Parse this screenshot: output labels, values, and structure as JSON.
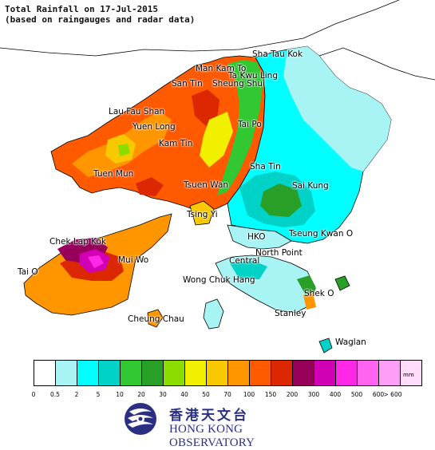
{
  "title": {
    "line1": "Total Rainfall on 17-Jul-2015",
    "line2": "(based on raingauges and radar data)"
  },
  "places": [
    {
      "id": "sha-tau-kok",
      "label": "Sha Tau Kok"
    },
    {
      "id": "man-kam-to",
      "label": "Man Kam To"
    },
    {
      "id": "ta-kwu-ling",
      "label": "Ta Kwu Ling"
    },
    {
      "id": "san-tin",
      "label": "San Tin"
    },
    {
      "id": "sheung-shui",
      "label": "Sheung Shui"
    },
    {
      "id": "lau-fau-shan",
      "label": "Lau Fau Shan"
    },
    {
      "id": "yuen-long",
      "label": "Yuen Long"
    },
    {
      "id": "tai-po",
      "label": "Tai Po"
    },
    {
      "id": "kam-tin",
      "label": "Kam Tin"
    },
    {
      "id": "sha-tin",
      "label": "Sha Tin"
    },
    {
      "id": "tuen-mun",
      "label": "Tuen Mun"
    },
    {
      "id": "sai-kung",
      "label": "Sai Kung"
    },
    {
      "id": "tsuen-wan",
      "label": "Tsuen Wan"
    },
    {
      "id": "tsing-yi",
      "label": "Tsing Yi"
    },
    {
      "id": "hko",
      "label": "HKO"
    },
    {
      "id": "tseung-kwan-o",
      "label": "Tseung Kwan O"
    },
    {
      "id": "chek-lap-kok",
      "label": "Chek Lap Kok"
    },
    {
      "id": "mui-wo",
      "label": "Mui Wo"
    },
    {
      "id": "central",
      "label": "Central"
    },
    {
      "id": "north-point",
      "label": "North Point"
    },
    {
      "id": "tai-o",
      "label": "Tai O"
    },
    {
      "id": "wong-chuk-hang",
      "label": "Wong Chuk Hang"
    },
    {
      "id": "shek-o",
      "label": "Shek O"
    },
    {
      "id": "stanley",
      "label": "Stanley"
    },
    {
      "id": "cheung-chau",
      "label": "Cheung Chau"
    },
    {
      "id": "waglan",
      "label": "Waglan"
    }
  ],
  "legend": {
    "unit": "mm",
    "ticks": [
      "0",
      "0.5",
      "2",
      "5",
      "10",
      "20",
      "30",
      "40",
      "50",
      "70",
      "100",
      "150",
      "200",
      "300",
      "400",
      "500",
      "600",
      "> 600"
    ],
    "colors": [
      "#ffffff",
      "#a8f4f4",
      "#00ffff",
      "#00d2c8",
      "#32c832",
      "#28a028",
      "#8cdc00",
      "#f0f000",
      "#f8c800",
      "#ff9600",
      "#ff5a00",
      "#dc2800",
      "#96005a",
      "#d200b4",
      "#ff28e6",
      "#ff64f0",
      "#ff9ef6",
      "#ffdcfa"
    ]
  },
  "logo": {
    "chinese": "香港天文台",
    "english": "HONG KONG OBSERVATORY",
    "brand_color": "#2a2f82"
  }
}
